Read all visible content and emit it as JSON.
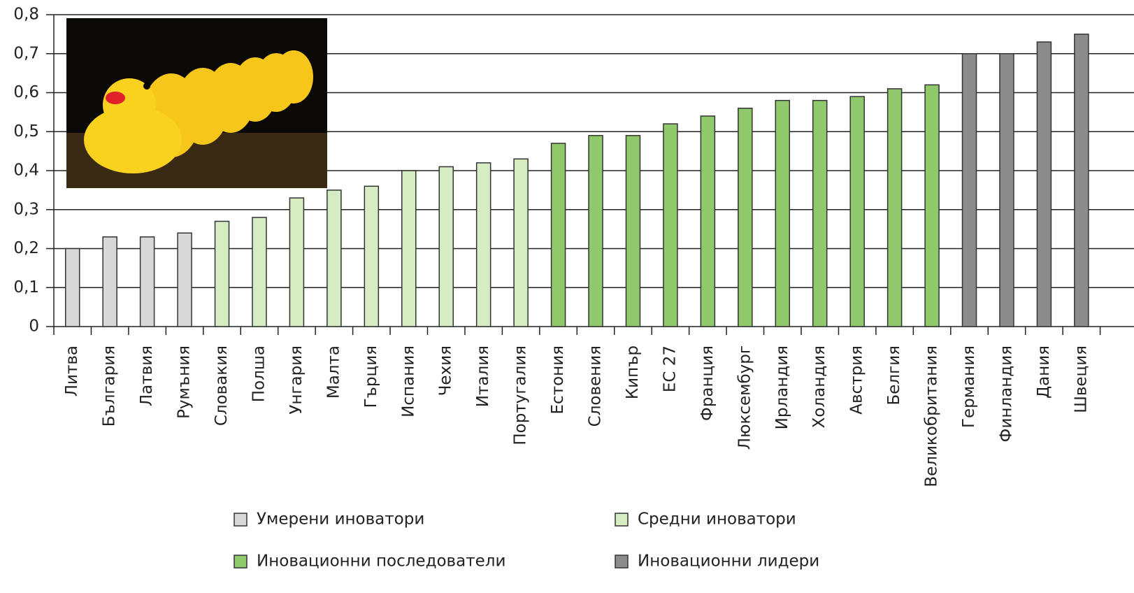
{
  "chart_data": {
    "type": "bar",
    "categories": [
      "Литва",
      "България",
      "Латвия",
      "Румъния",
      "Словакия",
      "Полша",
      "Унгария",
      "Малта",
      "Гърция",
      "Испания",
      "Чехия",
      "Италия",
      "Португалия",
      "Естония",
      "Словения",
      "Кипър",
      "ЕС 27",
      "Франция",
      "Люксембург",
      "Ирландия",
      "Холандия",
      "Австрия",
      "Белгия",
      "Великобритания",
      "Германия",
      "Финландия",
      "Дания",
      "Швеция"
    ],
    "values": [
      0.2,
      0.23,
      0.23,
      0.24,
      0.27,
      0.28,
      0.33,
      0.35,
      0.36,
      0.4,
      0.41,
      0.42,
      0.43,
      0.47,
      0.49,
      0.49,
      0.52,
      0.54,
      0.56,
      0.58,
      0.58,
      0.59,
      0.61,
      0.62,
      0.7,
      0.7,
      0.73,
      0.75
    ],
    "colors": [
      "#d8d8d8",
      "#d8d8d8",
      "#d8d8d8",
      "#d8d8d8",
      "#d6ecc2",
      "#d6ecc2",
      "#d6ecc2",
      "#d6ecc2",
      "#d6ecc2",
      "#d6ecc2",
      "#d6ecc2",
      "#d6ecc2",
      "#d6ecc2",
      "#8fc96c",
      "#8fc96c",
      "#8fc96c",
      "#8fc96c",
      "#8fc96c",
      "#8fc96c",
      "#8fc96c",
      "#8fc96c",
      "#8fc96c",
      "#8fc96c",
      "#8fc96c",
      "#8c8c8c",
      "#8c8c8c",
      "#8c8c8c",
      "#8c8c8c"
    ],
    "legend": [
      {
        "name": "Умерени иноватори",
        "color": "#d8d8d8"
      },
      {
        "name": "Средни иноватори",
        "color": "#d6ecc2"
      },
      {
        "name": "Иновационни последователи",
        "color": "#8fc96c"
      },
      {
        "name": "Иновационни лидери",
        "color": "#8c8c8c"
      }
    ],
    "ylim": [
      0,
      0.8
    ],
    "yticks": [
      0,
      {
        "value": 0.1,
        "label": "0,1"
      },
      {
        "value": 0.2,
        "label": "0,2"
      },
      {
        "value": 0.3,
        "label": "0,3"
      },
      {
        "value": 0.4,
        "label": "0,4"
      },
      {
        "value": 0.5,
        "label": "0,5"
      },
      {
        "value": 0.6,
        "label": "0,6"
      },
      {
        "value": 0.7,
        "label": "0,7"
      },
      {
        "value": 0.8,
        "label": "0,8"
      }
    ],
    "grid": true
  }
}
